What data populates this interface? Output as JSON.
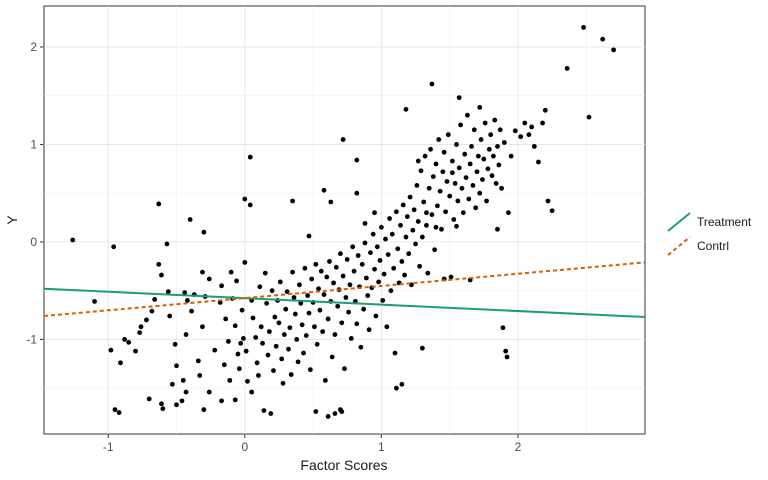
{
  "chart_data": {
    "type": "scatter",
    "xlabel": "Factor Scores",
    "ylabel": "Y",
    "xlim": [
      -1.47,
      2.93
    ],
    "ylim": [
      -1.97,
      2.42
    ],
    "x_ticks": [
      -1,
      0,
      1,
      2
    ],
    "x_tick_labels": [
      "-1",
      "0",
      "1",
      "2"
    ],
    "y_ticks": [
      -1,
      0,
      1,
      2
    ],
    "y_tick_labels": [
      "-1",
      "0",
      "1",
      "2"
    ],
    "grid": true,
    "legend_position": "right",
    "points": [
      [
        -1.26,
        0.02
      ],
      [
        -1.1,
        -0.61
      ],
      [
        -0.96,
        -0.05
      ],
      [
        -0.98,
        -1.11
      ],
      [
        -0.91,
        -1.24
      ],
      [
        -0.95,
        -1.72
      ],
      [
        -0.92,
        -1.75
      ],
      [
        -0.88,
        -1.0
      ],
      [
        -0.85,
        -1.03
      ],
      [
        -0.8,
        -1.12
      ],
      [
        -0.77,
        -0.93
      ],
      [
        -0.76,
        -0.87
      ],
      [
        -0.72,
        -0.8
      ],
      [
        -0.7,
        -1.61
      ],
      [
        -0.68,
        -0.71
      ],
      [
        -0.66,
        -0.59
      ],
      [
        -0.63,
        -0.23
      ],
      [
        -0.61,
        -0.34
      ],
      [
        -0.63,
        0.39
      ],
      [
        -0.57,
        -0.02
      ],
      [
        -0.56,
        -0.51
      ],
      [
        -0.55,
        -0.76
      ],
      [
        -0.61,
        -1.66
      ],
      [
        -0.6,
        -1.71
      ],
      [
        -0.51,
        -1.05
      ],
      [
        -0.5,
        -1.27
      ],
      [
        -0.53,
        -1.46
      ],
      [
        -0.5,
        -1.67
      ],
      [
        -0.45,
        -1.42
      ],
      [
        -0.46,
        -1.63
      ],
      [
        -0.43,
        -1.54
      ],
      [
        -0.43,
        -0.95
      ],
      [
        -0.42,
        -0.6
      ],
      [
        -0.44,
        -0.52
      ],
      [
        -0.37,
        -0.54
      ],
      [
        -0.39,
        -0.71
      ],
      [
        -0.4,
        0.23
      ],
      [
        -0.34,
        -1.22
      ],
      [
        -0.33,
        -1.37
      ],
      [
        -0.3,
        -1.72
      ],
      [
        -0.31,
        -0.87
      ],
      [
        -0.31,
        -0.31
      ],
      [
        -0.29,
        -0.56
      ],
      [
        -0.26,
        -0.38
      ],
      [
        -0.3,
        0.1
      ],
      [
        -0.26,
        -1.54
      ],
      [
        -0.22,
        -1.11
      ],
      [
        -0.18,
        -0.62
      ],
      [
        -0.17,
        -0.45
      ],
      [
        -0.17,
        -1.63
      ],
      [
        -0.15,
        -1.26
      ],
      [
        -0.14,
        -0.79
      ],
      [
        -0.12,
        -1.02
      ],
      [
        -0.11,
        -1.42
      ],
      [
        -0.1,
        -0.31
      ],
      [
        -0.09,
        -0.58
      ],
      [
        -0.07,
        -0.86
      ],
      [
        -0.07,
        -1.62
      ],
      [
        -0.06,
        -0.4
      ],
      [
        -0.05,
        -1.15
      ],
      [
        -0.04,
        -1.3
      ],
      [
        -0.03,
        -1.04
      ],
      [
        -0.02,
        -0.7
      ],
      [
        -0.01,
        -0.99
      ],
      [
        0.0,
        0.44
      ],
      [
        0.0,
        -0.21
      ],
      [
        0.01,
        -1.12
      ],
      [
        0.02,
        -1.43
      ],
      [
        0.04,
        0.38
      ],
      [
        0.05,
        -0.6
      ],
      [
        0.05,
        -1.54
      ],
      [
        0.06,
        -0.78
      ],
      [
        0.08,
        -0.98
      ],
      [
        0.09,
        -1.24
      ],
      [
        0.1,
        -1.37
      ],
      [
        0.11,
        -0.46
      ],
      [
        0.12,
        -0.87
      ],
      [
        0.13,
        -1.04
      ],
      [
        0.14,
        -1.73
      ],
      [
        0.15,
        -0.32
      ],
      [
        0.16,
        -0.63
      ],
      [
        0.17,
        -1.16
      ],
      [
        0.18,
        -0.92
      ],
      [
        0.19,
        -1.76
      ],
      [
        0.2,
        -0.5
      ],
      [
        0.21,
        -1.32
      ],
      [
        0.22,
        -0.77
      ],
      [
        0.23,
        -1.07
      ],
      [
        0.24,
        -0.6
      ],
      [
        0.25,
        -0.83
      ],
      [
        0.26,
        -0.41
      ],
      [
        0.27,
        -1.2
      ],
      [
        0.28,
        -1.45
      ],
      [
        0.29,
        -0.95
      ],
      [
        0.3,
        -0.69
      ],
      [
        0.31,
        -0.51
      ],
      [
        0.32,
        -1.1
      ],
      [
        0.33,
        -0.88
      ],
      [
        0.34,
        -1.36
      ],
      [
        0.35,
        -0.31
      ],
      [
        0.36,
        -0.57
      ],
      [
        0.37,
        -0.74
      ],
      [
        0.38,
        -1.0
      ],
      [
        0.39,
        -1.23
      ],
      [
        0.4,
        -0.44
      ],
      [
        0.41,
        -0.63
      ],
      [
        0.42,
        -0.85
      ],
      [
        0.43,
        -1.14
      ],
      [
        0.44,
        -0.27
      ],
      [
        0.45,
        -0.96
      ],
      [
        0.46,
        -0.55
      ],
      [
        0.47,
        -0.73
      ],
      [
        0.48,
        -1.31
      ],
      [
        0.49,
        -0.38
      ],
      [
        0.5,
        -0.62
      ],
      [
        0.51,
        -0.87
      ],
      [
        0.52,
        -0.23
      ],
      [
        0.53,
        -1.05
      ],
      [
        0.54,
        -0.48
      ],
      [
        0.55,
        -0.7
      ],
      [
        0.56,
        -0.3
      ],
      [
        0.57,
        -0.92
      ],
      [
        0.58,
        -0.54
      ],
      [
        0.59,
        -1.42
      ],
      [
        0.6,
        -0.36
      ],
      [
        0.61,
        -0.79
      ],
      [
        0.62,
        -0.2
      ],
      [
        0.63,
        -0.61
      ],
      [
        0.64,
        -1.18
      ],
      [
        0.65,
        -0.42
      ],
      [
        0.66,
        -0.95
      ],
      [
        0.67,
        -0.26
      ],
      [
        0.68,
        -0.66
      ],
      [
        0.69,
        -0.49
      ],
      [
        0.7,
        -0.12
      ],
      [
        0.71,
        -0.83
      ],
      [
        0.72,
        -0.35
      ],
      [
        0.73,
        -1.3
      ],
      [
        0.74,
        -0.57
      ],
      [
        0.75,
        -0.18
      ],
      [
        0.76,
        -0.72
      ],
      [
        0.77,
        -0.44
      ],
      [
        0.78,
        -0.99
      ],
      [
        0.79,
        -0.05
      ],
      [
        0.8,
        -0.3
      ],
      [
        0.81,
        -0.61
      ],
      [
        0.82,
        -0.84
      ],
      [
        0.83,
        -0.14
      ],
      [
        0.84,
        -0.46
      ],
      [
        0.85,
        -1.08
      ],
      [
        0.86,
        -0.23
      ],
      [
        0.87,
        -0.69
      ],
      [
        0.88,
        -0.01
      ],
      [
        0.89,
        -0.37
      ],
      [
        0.9,
        -0.55
      ],
      [
        0.91,
        -0.9
      ],
      [
        0.92,
        -0.11
      ],
      [
        0.93,
        -0.47
      ],
      [
        0.94,
        0.08
      ],
      [
        0.95,
        -0.28
      ],
      [
        0.96,
        -0.76
      ],
      [
        0.97,
        -0.05
      ],
      [
        0.98,
        -0.41
      ],
      [
        0.99,
        -0.19
      ],
      [
        1.0,
        0.15
      ],
      [
        1.01,
        -0.6
      ],
      [
        1.02,
        -0.33
      ],
      [
        1.03,
        0.03
      ],
      [
        1.04,
        -0.87
      ],
      [
        1.05,
        -0.13
      ],
      [
        1.06,
        0.24
      ],
      [
        1.07,
        -0.5
      ],
      [
        1.08,
        0.08
      ],
      [
        1.09,
        -0.27
      ],
      [
        1.1,
        -1.14
      ],
      [
        1.11,
        0.31
      ],
      [
        1.12,
        -0.07
      ],
      [
        1.13,
        -0.42
      ],
      [
        1.14,
        0.17
      ],
      [
        1.15,
        -0.2
      ],
      [
        1.16,
        0.38
      ],
      [
        1.17,
        -0.34
      ],
      [
        1.18,
        0.05
      ],
      [
        1.19,
        0.26
      ],
      [
        1.2,
        -0.12
      ],
      [
        1.21,
        0.46
      ],
      [
        1.22,
        -0.44
      ],
      [
        1.23,
        0.12
      ],
      [
        1.24,
        0.33
      ],
      [
        1.25,
        -0.02
      ],
      [
        1.26,
        0.58
      ],
      [
        1.27,
        0.21
      ],
      [
        1.28,
        -0.25
      ],
      [
        1.29,
        0.73
      ],
      [
        1.3,
        0.05
      ],
      [
        1.31,
        0.41
      ],
      [
        1.32,
        0.88
      ],
      [
        1.33,
        0.17
      ],
      [
        1.34,
        -0.32
      ],
      [
        1.35,
        0.55
      ],
      [
        1.36,
        0.95
      ],
      [
        1.37,
        0.28
      ],
      [
        1.38,
        0.67
      ],
      [
        1.39,
        -0.08
      ],
      [
        1.4,
        0.8
      ],
      [
        1.41,
        0.37
      ],
      [
        1.42,
        1.05
      ],
      [
        1.43,
        0.52
      ],
      [
        1.44,
        0.13
      ],
      [
        1.45,
        0.72
      ],
      [
        1.46,
        0.92
      ],
      [
        1.47,
        0.31
      ],
      [
        1.48,
        0.62
      ],
      [
        1.49,
        1.1
      ],
      [
        1.5,
        0.47
      ],
      [
        1.51,
        -0.36
      ],
      [
        1.52,
        0.83
      ],
      [
        1.53,
        0.23
      ],
      [
        1.54,
        0.6
      ],
      [
        1.55,
        1.0
      ],
      [
        1.56,
        0.42
      ],
      [
        1.57,
        0.76
      ],
      [
        1.58,
        1.2
      ],
      [
        1.59,
        0.55
      ],
      [
        1.6,
        0.3
      ],
      [
        1.61,
        0.9
      ],
      [
        1.62,
        0.66
      ],
      [
        1.63,
        1.3
      ],
      [
        1.64,
        0.44
      ],
      [
        1.65,
        0.8
      ],
      [
        1.66,
        0.98
      ],
      [
        1.67,
        0.58
      ],
      [
        1.68,
        1.15
      ],
      [
        1.69,
        0.35
      ],
      [
        1.7,
        0.72
      ],
      [
        1.71,
        0.88
      ],
      [
        1.72,
        0.5
      ],
      [
        1.73,
        1.05
      ],
      [
        1.74,
        0.64
      ],
      [
        1.75,
        0.85
      ],
      [
        1.76,
        1.22
      ],
      [
        1.77,
        0.42
      ],
      [
        1.78,
        0.75
      ],
      [
        1.79,
        0.95
      ],
      [
        1.8,
        1.1
      ],
      [
        1.81,
        0.68
      ],
      [
        1.82,
        0.88
      ],
      [
        1.83,
        1.25
      ],
      [
        1.84,
        0.6
      ],
      [
        1.85,
        0.98
      ],
      [
        1.86,
        0.79
      ],
      [
        1.87,
        1.15
      ],
      [
        1.88,
        0.55
      ],
      [
        1.89,
        -0.88
      ],
      [
        1.9,
        1.02
      ],
      [
        1.91,
        -1.12
      ],
      [
        1.92,
        -1.18
      ],
      [
        1.95,
        0.88
      ],
      [
        1.98,
        1.14
      ],
      [
        2.02,
        1.08
      ],
      [
        2.05,
        1.22
      ],
      [
        2.08,
        1.1
      ],
      [
        2.1,
        1.18
      ],
      [
        2.12,
        0.98
      ],
      [
        2.15,
        0.82
      ],
      [
        2.18,
        1.22
      ],
      [
        2.2,
        1.35
      ],
      [
        2.22,
        0.42
      ],
      [
        2.25,
        0.32
      ],
      [
        2.36,
        1.78
      ],
      [
        2.48,
        2.2
      ],
      [
        2.52,
        1.28
      ],
      [
        2.62,
        2.08
      ],
      [
        2.7,
        1.97
      ],
      [
        0.52,
        -1.74
      ],
      [
        0.61,
        -1.79
      ],
      [
        0.66,
        -1.76
      ],
      [
        0.7,
        -1.72
      ],
      [
        0.71,
        -1.74
      ],
      [
        0.72,
        1.05
      ],
      [
        1.11,
        -1.5
      ],
      [
        1.15,
        -1.46
      ],
      [
        1.3,
        -1.09
      ],
      [
        1.33,
        0.3
      ],
      [
        1.37,
        1.62
      ],
      [
        1.18,
        1.36
      ],
      [
        1.57,
        1.48
      ],
      [
        1.72,
        1.38
      ],
      [
        1.85,
        0.13
      ],
      [
        1.93,
        0.3
      ],
      [
        0.04,
        0.87
      ],
      [
        0.47,
        0.06
      ],
      [
        0.35,
        0.42
      ],
      [
        0.58,
        0.53
      ],
      [
        0.82,
        0.5
      ],
      [
        0.63,
        0.41
      ],
      [
        0.82,
        0.84
      ],
      [
        0.95,
        0.3
      ],
      [
        1.27,
        0.83
      ],
      [
        0.88,
        0.19
      ],
      [
        1.52,
        0.71
      ],
      [
        1.46,
        -0.38
      ],
      [
        1.65,
        -0.39
      ],
      [
        1.4,
        0.15
      ],
      [
        1.55,
        0.16
      ]
    ],
    "series": [
      {
        "name": "Treatment",
        "style": "solid",
        "color": "#1b9e77",
        "x": [
          -1.47,
          2.93
        ],
        "y": [
          -0.48,
          -0.77
        ]
      },
      {
        "name": "Contrl",
        "style": "dashed",
        "color": "#d95f02",
        "x": [
          -1.47,
          2.93
        ],
        "y": [
          -0.76,
          -0.21
        ]
      }
    ]
  }
}
